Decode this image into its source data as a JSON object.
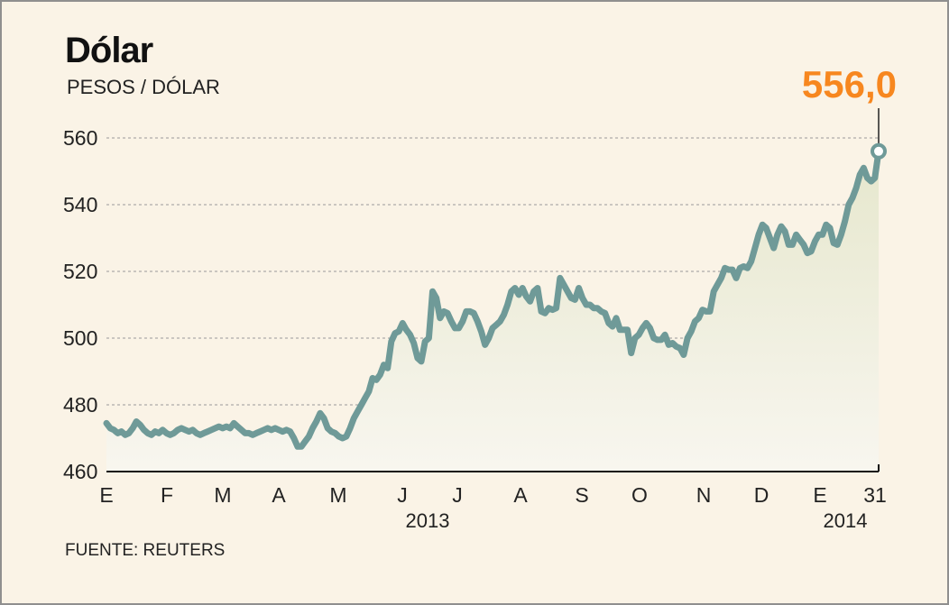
{
  "chart_data": {
    "type": "area",
    "title": "Dólar",
    "subtitle": "PESOS / DÓLAR",
    "source": "FUENTE: REUTERS",
    "ylim": [
      460,
      560
    ],
    "yticks": [
      "560",
      "540",
      "520",
      "500",
      "480",
      "460"
    ],
    "x_labels": [
      "E",
      "F",
      "M",
      "A",
      "M",
      "J",
      "J",
      "A",
      "S",
      "O",
      "N",
      "D",
      "E",
      "31"
    ],
    "year_labels": [
      "2013",
      "2014"
    ],
    "last_value_label": "556,0",
    "grid": true,
    "colors": {
      "line": "#6f9a98",
      "area_top": "#e6e7cd",
      "area_bottom": "#f8f6ef",
      "last_value": "#f7871f",
      "grid": "#9a9a9a"
    },
    "series": [
      {
        "values": [
          474.5,
          473,
          472.5,
          471.5,
          472,
          471,
          471.5,
          473,
          475,
          474,
          472.5,
          471.5,
          471,
          472,
          471.5,
          472.5,
          471.5,
          471,
          471.5,
          472.5,
          473,
          472.5,
          472,
          472.5,
          471.5,
          471,
          471.5,
          472,
          472.5,
          473,
          473.5,
          473,
          473.5,
          473,
          474.5,
          473.5,
          472.5,
          471.5,
          471.5,
          471,
          471.5,
          472,
          472.5,
          473,
          472.5,
          473,
          472.5,
          472,
          472.5,
          472,
          470,
          467.5,
          467.5,
          469,
          470.5,
          473,
          475,
          477.5,
          476,
          473,
          472,
          471.5,
          470.5,
          470,
          470.5,
          473,
          476,
          478,
          480,
          482,
          484,
          488,
          487.5,
          489,
          492,
          491,
          499,
          501.5,
          502,
          504.5,
          502.5,
          501,
          498.5,
          494,
          493,
          499,
          500,
          514,
          512,
          506,
          508,
          507.5,
          505,
          503,
          503,
          505,
          508,
          508,
          507.5,
          505,
          502,
          498,
          500,
          503,
          504,
          505,
          507,
          510,
          514,
          515,
          513,
          515,
          512.5,
          511,
          514,
          515,
          508,
          507.5,
          509,
          508.5,
          509,
          518,
          516,
          514,
          512,
          511.5,
          515,
          512,
          510,
          510,
          509,
          509,
          508,
          507.5,
          504.5,
          503.5,
          506,
          502.5,
          502.5,
          502.5,
          495.5,
          500,
          501,
          503,
          504.5,
          503,
          500,
          499.5,
          499.5,
          501,
          498,
          498.5,
          497.5,
          497,
          495,
          500,
          502,
          505,
          506,
          508.5,
          508,
          508,
          514,
          516,
          518,
          521,
          520.5,
          520.5,
          518,
          521,
          521.5,
          521,
          523,
          527,
          531,
          534,
          533,
          530,
          527,
          531,
          533.5,
          532,
          528,
          528,
          531,
          529.5,
          528,
          525.5,
          526,
          529,
          531,
          531,
          534,
          533,
          528.5,
          528,
          531,
          535,
          540,
          542,
          545,
          549,
          551,
          548,
          547,
          548,
          556
        ]
      }
    ]
  }
}
